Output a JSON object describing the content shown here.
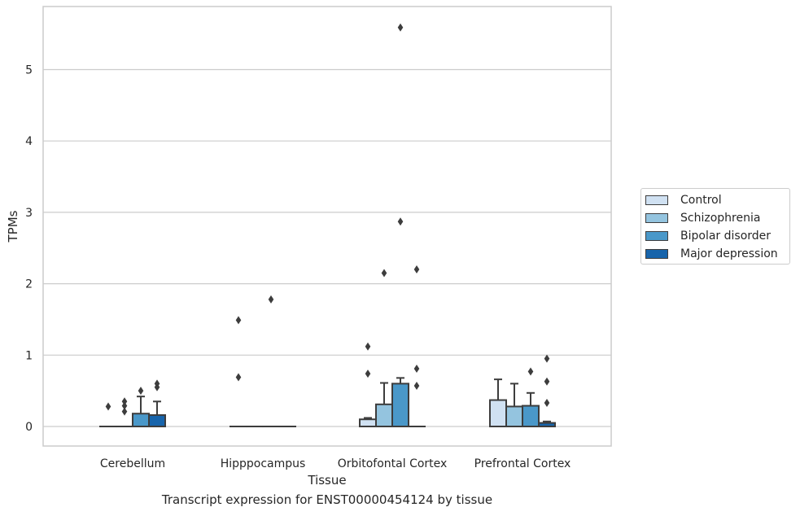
{
  "caption": "Transcript expression for ENST00000454124 by tissue",
  "chart_data": {
    "type": "box",
    "xlabel": "Tissue",
    "ylabel": "TPMs",
    "ylim": [
      -0.27,
      5.9
    ],
    "yticks": [
      0,
      1,
      2,
      3,
      4,
      5
    ],
    "grid": "horizontal",
    "legend_position": "right",
    "categories": [
      "Cerebellum",
      "Hipppocampus",
      "Orbitofontal Cortex",
      "Prefrontal Cortex"
    ],
    "series": [
      {
        "name": "Control",
        "color": "#d0e1f2",
        "boxes": [
          {
            "q1": 0,
            "median": 0,
            "q3": 0,
            "whisker_low": 0,
            "whisker_high": 0,
            "outliers": [
              0.28
            ]
          },
          {
            "q1": 0,
            "median": 0,
            "q3": 0,
            "whisker_low": 0,
            "whisker_high": 0,
            "outliers": [
              0.69,
              1.49
            ]
          },
          {
            "q1": 0,
            "median": 0,
            "q3": 0.1,
            "whisker_low": 0,
            "whisker_high": 0.12,
            "outliers": [
              0.74,
              1.12
            ]
          },
          {
            "q1": 0,
            "median": 0,
            "q3": 0.37,
            "whisker_low": 0,
            "whisker_high": 0.66,
            "outliers": []
          }
        ]
      },
      {
        "name": "Schizophrenia",
        "color": "#94c4df",
        "boxes": [
          {
            "q1": 0,
            "median": 0,
            "q3": 0,
            "whisker_low": 0,
            "whisker_high": 0,
            "outliers": [
              0.21,
              0.29,
              0.35
            ]
          },
          {
            "q1": 0,
            "median": 0,
            "q3": 0,
            "whisker_low": 0,
            "whisker_high": 0,
            "outliers": []
          },
          {
            "q1": 0,
            "median": 0,
            "q3": 0.31,
            "whisker_low": 0,
            "whisker_high": 0.61,
            "outliers": [
              2.15
            ]
          },
          {
            "q1": 0,
            "median": 0,
            "q3": 0.28,
            "whisker_low": 0,
            "whisker_high": 0.6,
            "outliers": []
          }
        ]
      },
      {
        "name": "Bipolar disorder",
        "color": "#4a98c9",
        "boxes": [
          {
            "q1": 0,
            "median": 0,
            "q3": 0.18,
            "whisker_low": 0,
            "whisker_high": 0.42,
            "outliers": [
              0.5
            ]
          },
          {
            "q1": 0,
            "median": 0,
            "q3": 0,
            "whisker_low": 0,
            "whisker_high": 0,
            "outliers": [
              1.78
            ]
          },
          {
            "q1": 0,
            "median": 0,
            "q3": 0.6,
            "whisker_low": 0,
            "whisker_high": 0.68,
            "outliers": [
              2.87,
              5.59
            ]
          },
          {
            "q1": 0,
            "median": 0,
            "q3": 0.29,
            "whisker_low": 0,
            "whisker_high": 0.47,
            "outliers": [
              0.77
            ]
          }
        ]
      },
      {
        "name": "Major depression",
        "color": "#1764ab",
        "boxes": [
          {
            "q1": 0,
            "median": 0,
            "q3": 0.16,
            "whisker_low": 0,
            "whisker_high": 0.35,
            "outliers": [
              0.55,
              0.6
            ]
          },
          {
            "q1": 0,
            "median": 0,
            "q3": 0,
            "whisker_low": 0,
            "whisker_high": 0,
            "outliers": []
          },
          {
            "q1": 0,
            "median": 0,
            "q3": 0,
            "whisker_low": 0,
            "whisker_high": 0,
            "outliers": [
              0.57,
              0.81,
              2.2
            ]
          },
          {
            "q1": 0,
            "median": 0,
            "q3": 0.05,
            "whisker_low": 0,
            "whisker_high": 0.07,
            "outliers": [
              0.33,
              0.63,
              0.95
            ]
          }
        ]
      }
    ]
  }
}
